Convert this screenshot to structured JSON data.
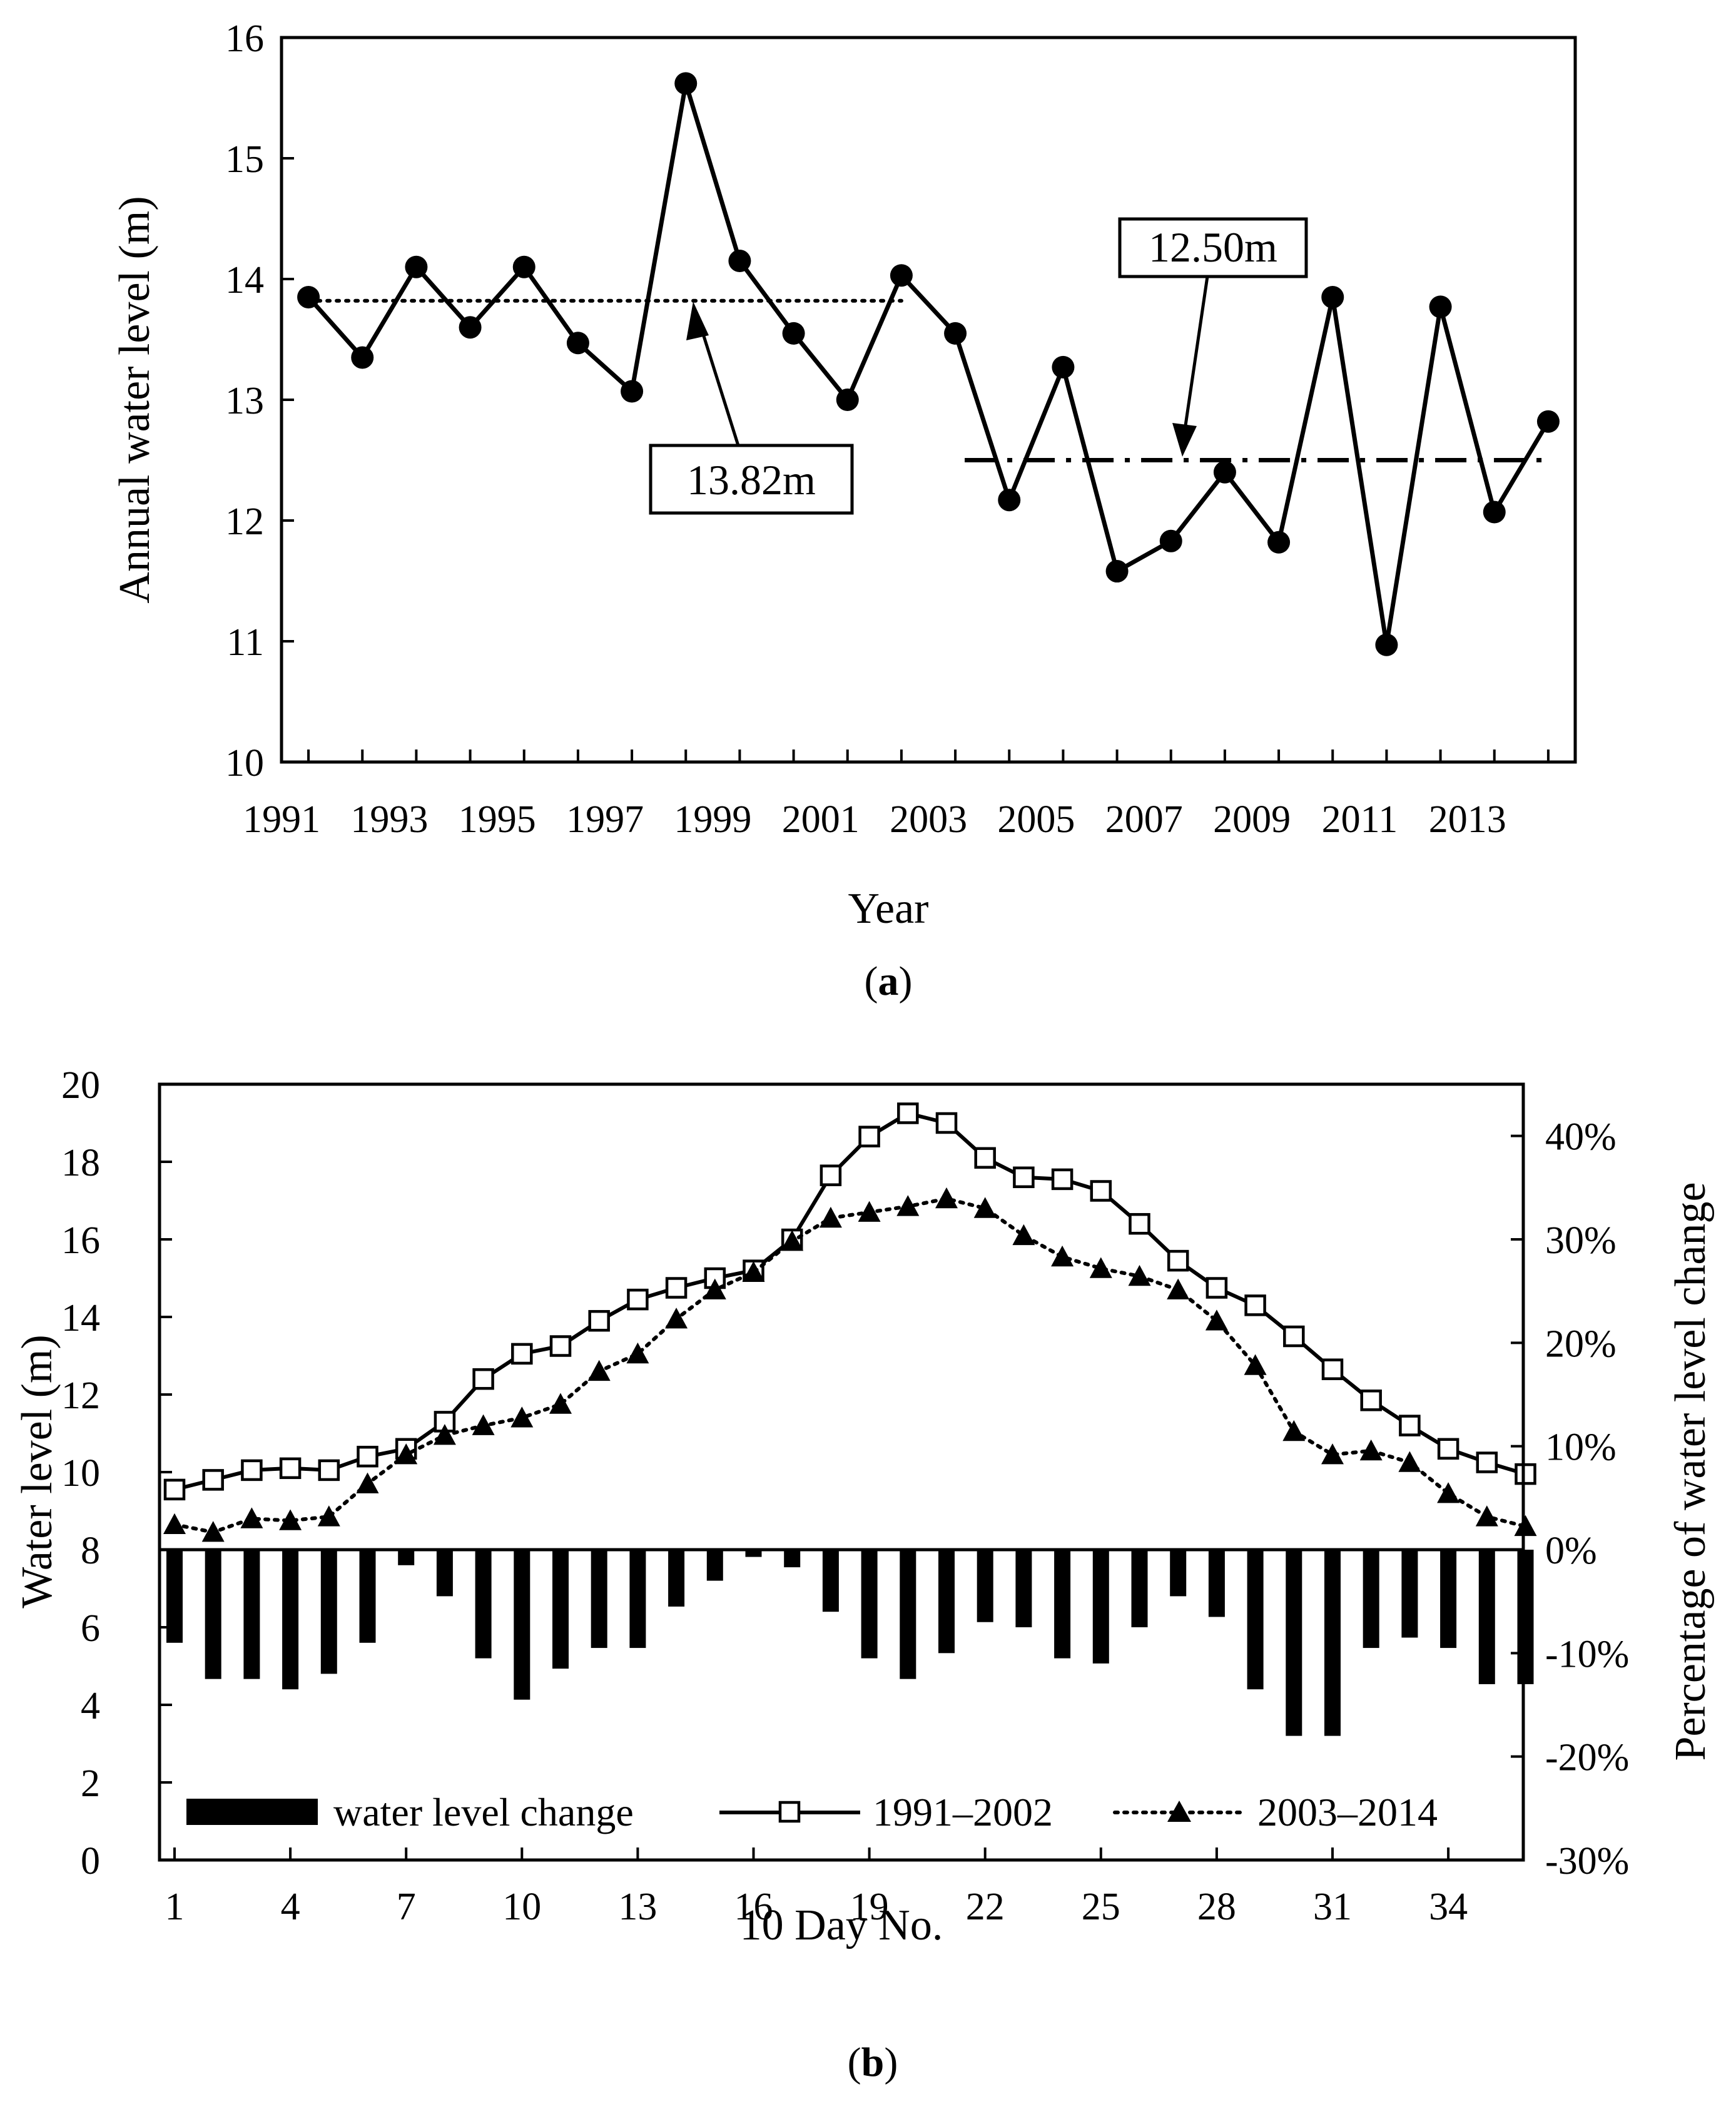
{
  "chart_data": [
    {
      "id": "a",
      "type": "line",
      "caption_letter": "a",
      "xlabel": "Year",
      "ylabel": "Annual water level (m)",
      "ylim": [
        10,
        16
      ],
      "yticks": [
        "10",
        "11",
        "12",
        "13",
        "14",
        "15",
        "16"
      ],
      "xlim": [
        1990.5,
        2014.5
      ],
      "xticks": [
        "1991",
        "1993",
        "1995",
        "1997",
        "1999",
        "2001",
        "2003",
        "2005",
        "2007",
        "2009",
        "2011",
        "2013"
      ],
      "series": [
        {
          "name": "Annual water level",
          "x": [
            1991,
            1992,
            1993,
            1994,
            1995,
            1996,
            1997,
            1998,
            1999,
            2000,
            2001,
            2002,
            2003,
            2004,
            2005,
            2006,
            2007,
            2008,
            2009,
            2010,
            2011,
            2012,
            2013,
            2014
          ],
          "values": [
            13.85,
            13.35,
            14.1,
            13.6,
            14.1,
            13.47,
            13.07,
            15.62,
            14.15,
            13.55,
            13.0,
            14.03,
            13.55,
            12.17,
            13.27,
            11.58,
            11.83,
            12.4,
            11.82,
            13.85,
            10.97,
            13.77,
            12.07,
            12.82
          ]
        }
      ],
      "mean_lines": [
        {
          "label": "13.82m",
          "value": 13.82,
          "x_start": 1991,
          "x_end": 2002,
          "style": "dotted"
        },
        {
          "label": "12.50m",
          "value": 12.5,
          "x_start": 2003,
          "x_end": 2014,
          "style": "dash-dot"
        }
      ]
    },
    {
      "id": "b",
      "type": "bar+line",
      "caption_letter": "b",
      "xlabel": "10 Day No.",
      "ylabel_left": "Water level (m)",
      "ylabel_right": "Percentage of water level change",
      "ylim_left": [
        0,
        20
      ],
      "yticks_left": [
        "0",
        "2",
        "4",
        "6",
        "8",
        "10",
        "12",
        "14",
        "16",
        "18",
        "20"
      ],
      "ylim_right": [
        -0.3,
        0.45
      ],
      "yticks_right": [
        "-30%",
        "-20%",
        "-10%",
        "0%",
        "10%",
        "20%",
        "30%",
        "40%"
      ],
      "xticks": [
        "1",
        "4",
        "7",
        "10",
        "13",
        "16",
        "19",
        "22",
        "25",
        "28",
        "31",
        "34"
      ],
      "x": [
        1,
        2,
        3,
        4,
        5,
        6,
        7,
        8,
        9,
        10,
        11,
        12,
        13,
        14,
        15,
        16,
        17,
        18,
        19,
        20,
        21,
        22,
        23,
        24,
        25,
        26,
        27,
        28,
        29,
        30,
        31,
        32,
        33,
        34,
        35,
        36
      ],
      "legend": {
        "bars": "water level change",
        "line1": "1991–2002",
        "line2": "2003–2014",
        "position": "bottom"
      },
      "series": [
        {
          "name": "1991–2002",
          "axis": "left",
          "values": [
            9.55,
            9.8,
            10.05,
            10.1,
            10.05,
            10.4,
            10.6,
            11.3,
            12.4,
            13.05,
            13.25,
            13.9,
            14.45,
            14.75,
            15.0,
            15.2,
            16.0,
            17.65,
            18.65,
            19.25,
            19.0,
            18.1,
            17.6,
            17.55,
            17.25,
            16.4,
            15.45,
            14.75,
            14.3,
            13.5,
            12.65,
            11.85,
            11.2,
            10.6,
            10.25,
            9.95
          ]
        },
        {
          "name": "2003–2014",
          "axis": "left",
          "values": [
            8.65,
            8.45,
            8.8,
            8.75,
            8.85,
            9.7,
            10.45,
            10.95,
            11.2,
            11.4,
            11.75,
            12.6,
            13.05,
            13.95,
            14.7,
            15.15,
            15.95,
            16.55,
            16.7,
            16.85,
            17.05,
            16.8,
            16.1,
            15.55,
            15.25,
            15.05,
            14.7,
            13.9,
            12.75,
            11.05,
            10.45,
            10.55,
            10.25,
            9.45,
            8.85,
            8.6
          ],
          "dotted": true
        },
        {
          "name": "water level change",
          "axis": "right",
          "type": "bar",
          "values": [
            -0.09,
            -0.125,
            -0.125,
            -0.135,
            -0.12,
            -0.09,
            -0.015,
            -0.045,
            -0.105,
            -0.145,
            -0.115,
            -0.095,
            -0.095,
            -0.055,
            -0.03,
            -0.007,
            -0.017,
            -0.06,
            -0.105,
            -0.125,
            -0.1,
            -0.07,
            -0.075,
            -0.105,
            -0.11,
            -0.075,
            -0.045,
            -0.065,
            -0.135,
            -0.18,
            -0.18,
            -0.095,
            -0.085,
            -0.095,
            -0.13,
            -0.13
          ]
        }
      ]
    }
  ]
}
